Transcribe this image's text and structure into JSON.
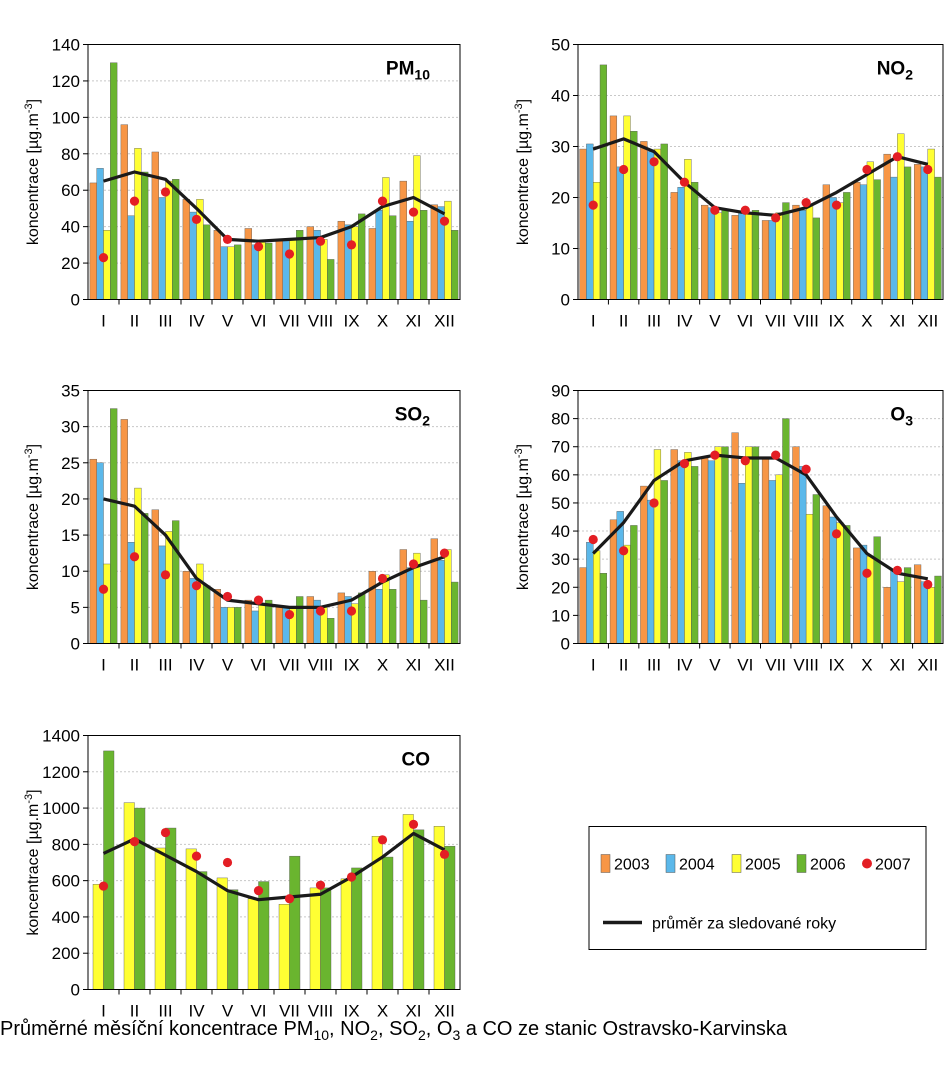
{
  "colors": {
    "2003": "#F79646",
    "2004": "#5BB8EA",
    "2005": "#FFFF33",
    "2006": "#6AB52F",
    "2007": "#E31E24",
    "mean": "#1a1a1a",
    "grid": "#c8c8c8",
    "bar_stroke": "#555555"
  },
  "legend": {
    "entries": [
      {
        "key": "2003",
        "label": "2003",
        "type": "bar"
      },
      {
        "key": "2004",
        "label": "2004",
        "type": "bar"
      },
      {
        "key": "2005",
        "label": "2005",
        "type": "bar"
      },
      {
        "key": "2006",
        "label": "2006",
        "type": "bar"
      },
      {
        "key": "2007",
        "label": "2007",
        "type": "dot"
      }
    ],
    "mean_label": "průměr za sledované roky"
  },
  "caption": {
    "prefix": "Průměrné měsíční koncentrace PM",
    "pm_sub": "10",
    "sep1": ", NO",
    "no2_sub": "2",
    "sep2": ", SO",
    "so2_sub": "2",
    "sep3": ", O",
    "o3_sub": "3",
    "suffix": " a CO ze stanic Ostravsko-Karvinska"
  },
  "chart_data": [
    {
      "type": "bar",
      "title": "PM",
      "title_sub": "10",
      "ylabel": "koncentrace [µg.m",
      "ylabel_sup": "-3",
      "ylabel_end": "]",
      "ylim": [
        0,
        140
      ],
      "yticks": [
        0,
        20,
        40,
        60,
        80,
        100,
        120,
        140
      ],
      "categories": [
        "I",
        "II",
        "III",
        "IV",
        "V",
        "VI",
        "VII",
        "VIII",
        "IX",
        "X",
        "XI",
        "XII"
      ],
      "series": [
        {
          "name": "2003",
          "values": [
            64,
            96,
            81,
            55,
            38,
            39,
            33,
            40,
            43,
            39,
            65,
            52
          ]
        },
        {
          "name": "2004",
          "values": [
            72,
            46,
            56,
            48,
            29,
            30,
            33,
            38,
            41,
            49,
            43,
            51
          ]
        },
        {
          "name": "2005",
          "values": [
            38,
            83,
            65,
            55,
            29,
            32,
            33,
            33,
            40,
            67,
            79,
            54
          ]
        },
        {
          "name": "2006",
          "values": [
            130,
            70,
            66,
            41,
            30,
            31,
            38,
            22,
            47,
            46,
            49,
            38
          ]
        }
      ],
      "dots": {
        "name": "2007",
        "values": [
          23,
          54,
          59,
          44,
          33,
          29,
          25,
          32,
          30,
          54,
          48,
          43
        ]
      },
      "mean": {
        "name": "průměr za sledované roky",
        "values": [
          65,
          70,
          66,
          50,
          33,
          32,
          33,
          34,
          40,
          51,
          56,
          47
        ]
      }
    },
    {
      "type": "bar",
      "title": "NO",
      "title_sub": "2",
      "ylabel": "koncentrace [µg.m",
      "ylabel_sup": "-3",
      "ylabel_end": "]",
      "ylim": [
        0,
        50
      ],
      "yticks": [
        0,
        10,
        20,
        30,
        40,
        50
      ],
      "categories": [
        "I",
        "II",
        "III",
        "IV",
        "V",
        "VI",
        "VII",
        "VIII",
        "IX",
        "X",
        "XI",
        "XII"
      ],
      "series": [
        {
          "name": "2003",
          "values": [
            29.5,
            36,
            31,
            21,
            18.5,
            16.5,
            15.5,
            18.5,
            22.5,
            23,
            28.5,
            26.5
          ]
        },
        {
          "name": "2004",
          "values": [
            30.5,
            26,
            29,
            22,
            18,
            17,
            15.5,
            17.5,
            20,
            22.5,
            24,
            26
          ]
        },
        {
          "name": "2005",
          "values": [
            23,
            36,
            29.5,
            27.5,
            17,
            17,
            17,
            18.5,
            19,
            27,
            32.5,
            29.5
          ]
        },
        {
          "name": "2006",
          "values": [
            46,
            33,
            30.5,
            23,
            17.5,
            17.5,
            19,
            16,
            21,
            23.5,
            26,
            24
          ]
        }
      ],
      "dots": {
        "name": "2007",
        "values": [
          18.5,
          25.5,
          27,
          23,
          17.5,
          17.5,
          16,
          19,
          18.5,
          25.5,
          28,
          25.5
        ]
      },
      "mean": {
        "name": "průměr za sledované roky",
        "values": [
          29.5,
          31.5,
          29,
          23,
          18,
          17,
          16.5,
          18,
          21,
          24.5,
          28,
          26.5
        ]
      }
    },
    {
      "type": "bar",
      "title": "SO",
      "title_sub": "2",
      "ylabel": "koncentrace [µg.m",
      "ylabel_sup": "-3",
      "ylabel_end": "]",
      "ylim": [
        0,
        35
      ],
      "yticks": [
        0,
        5,
        10,
        15,
        20,
        25,
        30,
        35
      ],
      "categories": [
        "I",
        "II",
        "III",
        "IV",
        "V",
        "VI",
        "VII",
        "VIII",
        "IX",
        "X",
        "XI",
        "XII"
      ],
      "series": [
        {
          "name": "2003",
          "values": [
            25.5,
            31,
            18.5,
            10,
            7.5,
            6,
            5,
            6.5,
            7,
            10,
            13,
            14.5
          ]
        },
        {
          "name": "2004",
          "values": [
            25,
            14,
            13.5,
            9,
            5,
            4.5,
            5,
            6,
            6.5,
            7.5,
            10.5,
            11.5
          ]
        },
        {
          "name": "2005",
          "values": [
            11,
            21.5,
            15.5,
            11,
            5,
            5.5,
            5,
            5,
            5.5,
            9.5,
            12.5,
            13
          ]
        },
        {
          "name": "2006",
          "values": [
            32.5,
            18,
            17,
            8,
            5,
            6,
            6.5,
            3.5,
            7,
            7.5,
            6,
            8.5
          ]
        }
      ],
      "dots": {
        "name": "2007",
        "values": [
          7.5,
          12,
          9.5,
          8,
          6.5,
          6,
          4,
          4.5,
          4.5,
          9,
          11,
          12.5
        ]
      },
      "mean": {
        "name": "průměr za sledované roky",
        "values": [
          20,
          19,
          15,
          9,
          6,
          5.5,
          5,
          5,
          6,
          8.5,
          10.5,
          12
        ]
      }
    },
    {
      "type": "bar",
      "title": "O",
      "title_sub": "3",
      "ylabel": "koncentrace [µg.m",
      "ylabel_sup": "-3",
      "ylabel_end": "]",
      "ylim": [
        0,
        90
      ],
      "yticks": [
        0,
        10,
        20,
        30,
        40,
        50,
        60,
        70,
        80,
        90
      ],
      "categories": [
        "I",
        "II",
        "III",
        "IV",
        "V",
        "VI",
        "VII",
        "VIII",
        "IX",
        "X",
        "XI",
        "XII"
      ],
      "series": [
        {
          "name": "2003",
          "values": [
            27,
            44,
            56,
            69,
            66,
            75,
            66,
            70,
            49,
            34,
            20,
            28
          ]
        },
        {
          "name": "2004",
          "values": [
            36,
            47,
            51,
            65,
            65,
            57,
            58,
            63,
            45,
            35,
            26,
            22
          ]
        },
        {
          "name": "2005",
          "values": [
            33,
            35,
            69,
            68,
            70,
            70,
            60,
            46,
            43,
            31,
            22,
            20
          ]
        },
        {
          "name": "2006",
          "values": [
            25,
            42,
            58,
            63,
            70,
            70,
            80,
            53,
            42,
            38,
            27,
            24
          ]
        }
      ],
      "dots": {
        "name": "2007",
        "values": [
          37,
          33,
          50,
          64,
          67,
          65,
          67,
          62,
          39,
          25,
          26,
          21
        ]
      },
      "mean": {
        "name": "průměr za sledované roky",
        "values": [
          32,
          43,
          58,
          65,
          67,
          66,
          66,
          60,
          45,
          32,
          25,
          23
        ]
      }
    },
    {
      "type": "bar",
      "title": "CO",
      "title_sub": "",
      "ylabel": "koncentrace [µg.m",
      "ylabel_sup": "-3",
      "ylabel_end": "]",
      "ylim": [
        0,
        1400
      ],
      "yticks": [
        0,
        200,
        400,
        600,
        800,
        1000,
        1200,
        1400
      ],
      "categories": [
        "I",
        "II",
        "III",
        "IV",
        "V",
        "VI",
        "VII",
        "VIII",
        "IX",
        "X",
        "XI",
        "XII"
      ],
      "series": [
        {
          "name": "2005",
          "values": [
            580,
            1030,
            780,
            775,
            615,
            500,
            470,
            560,
            610,
            845,
            965,
            900
          ]
        },
        {
          "name": "2006",
          "values": [
            1315,
            1000,
            890,
            650,
            550,
            595,
            735,
            560,
            670,
            730,
            880,
            790
          ]
        }
      ],
      "dots": {
        "name": "2007",
        "values": [
          570,
          815,
          865,
          735,
          700,
          545,
          500,
          575,
          620,
          825,
          910,
          745
        ]
      },
      "mean": {
        "name": "průměr za sledované roky",
        "values": [
          750,
          830,
          740,
          650,
          545,
          495,
          510,
          525,
          620,
          730,
          860,
          770
        ]
      }
    }
  ]
}
